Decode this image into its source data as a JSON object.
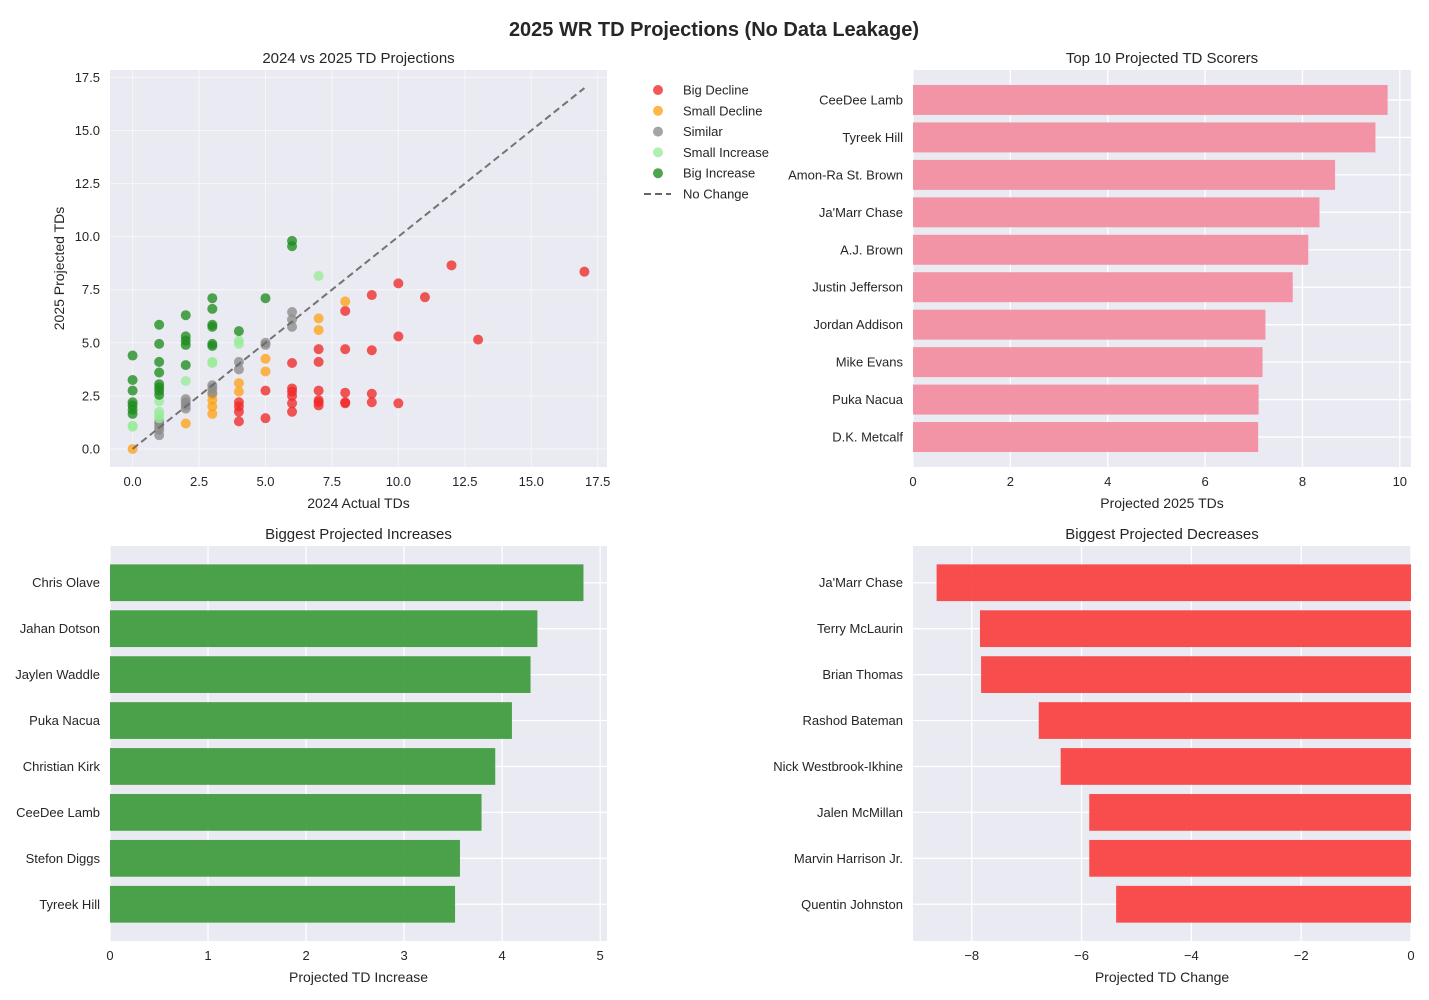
{
  "title": "2025 WR TD Projections (No Data Leakage)",
  "colors": {
    "panel_bg": "#eaeaf2",
    "grid": "#ffffff",
    "big_decline": "#ef2929",
    "small_decline": "#ffa31a",
    "similar": "#8c8c8c",
    "small_increase": "#98ec98",
    "big_increase": "#1e8c1e",
    "top10_bar": "#f28ba0",
    "increase_bar": "#3c9a3c",
    "decrease_bar": "#f93f3f",
    "no_change_line": "#666666"
  },
  "chart_data": [
    {
      "type": "scatter",
      "title": "2024 vs 2025 TD Projections",
      "xlabel": "2024 Actual TDs",
      "ylabel": "2025 Projected TDs",
      "xlim": [
        -0.85,
        17.85
      ],
      "ylim": [
        -0.85,
        17.85
      ],
      "xticks": [
        0,
        2.5,
        5,
        7.5,
        10,
        12.5,
        15,
        17.5
      ],
      "xtick_labels": [
        "0.0",
        "2.5",
        "5.0",
        "7.5",
        "10.0",
        "12.5",
        "15.0",
        "17.5"
      ],
      "yticks": [
        0,
        2.5,
        5,
        7.5,
        10,
        12.5,
        15,
        17.5
      ],
      "ytick_labels": [
        "0.0",
        "2.5",
        "5.0",
        "7.5",
        "10.0",
        "12.5",
        "15.0",
        "17.5"
      ],
      "grid": true,
      "legend_position": "outside-right",
      "reference_line": {
        "name": "No Change",
        "from": [
          0,
          0
        ],
        "to": [
          17,
          17
        ],
        "style": "dashed"
      },
      "series": [
        {
          "name": "Big Decline",
          "color_key": "big_decline",
          "points": [
            [
              4,
              1.3
            ],
            [
              4,
              1.75
            ],
            [
              4,
              2.0
            ],
            [
              4,
              2.2
            ],
            [
              5,
              1.45
            ],
            [
              5,
              2.75
            ],
            [
              6,
              1.75
            ],
            [
              6,
              2.15
            ],
            [
              6,
              2.5
            ],
            [
              6,
              2.7
            ],
            [
              6,
              2.85
            ],
            [
              6,
              4.05
            ],
            [
              7,
              2.05
            ],
            [
              7,
              2.2
            ],
            [
              7,
              2.3
            ],
            [
              7,
              2.75
            ],
            [
              7,
              4.1
            ],
            [
              7,
              4.7
            ],
            [
              8,
              2.15
            ],
            [
              8,
              2.2
            ],
            [
              8,
              2.65
            ],
            [
              8,
              4.7
            ],
            [
              8,
              6.5
            ],
            [
              9,
              2.2
            ],
            [
              9,
              2.6
            ],
            [
              9,
              4.65
            ],
            [
              9,
              7.25
            ],
            [
              10,
              2.15
            ],
            [
              10,
              5.3
            ],
            [
              10,
              7.8
            ],
            [
              11,
              7.15
            ],
            [
              12,
              8.65
            ],
            [
              13,
              5.15
            ],
            [
              17,
              8.35
            ]
          ]
        },
        {
          "name": "Small Decline",
          "color_key": "small_decline",
          "points": [
            [
              0,
              0.0
            ],
            [
              2,
              1.2
            ],
            [
              3,
              1.65
            ],
            [
              3,
              2.0
            ],
            [
              3,
              2.3
            ],
            [
              3,
              2.55
            ],
            [
              4,
              2.7
            ],
            [
              4,
              3.1
            ],
            [
              5,
              3.65
            ],
            [
              5,
              4.25
            ],
            [
              7,
              5.6
            ],
            [
              7,
              6.15
            ],
            [
              8,
              6.95
            ]
          ]
        },
        {
          "name": "Similar",
          "color_key": "similar",
          "points": [
            [
              1,
              0.65
            ],
            [
              1,
              0.9
            ],
            [
              1,
              1.05
            ],
            [
              1,
              1.2
            ],
            [
              1,
              1.3
            ],
            [
              2,
              1.9
            ],
            [
              2,
              2.05
            ],
            [
              2,
              2.2
            ],
            [
              2,
              2.35
            ],
            [
              3,
              2.65
            ],
            [
              3,
              2.85
            ],
            [
              3,
              3.0
            ],
            [
              4,
              3.75
            ],
            [
              4,
              4.1
            ],
            [
              5,
              4.9
            ],
            [
              5,
              5.0
            ],
            [
              6,
              5.75
            ],
            [
              6,
              6.1
            ],
            [
              6,
              6.45
            ]
          ]
        },
        {
          "name": "Small Increase",
          "color_key": "small_increase",
          "points": [
            [
              0,
              1.05
            ],
            [
              0,
              1.1
            ],
            [
              1,
              1.45
            ],
            [
              1,
              1.6
            ],
            [
              1,
              1.75
            ],
            [
              1,
              2.25
            ],
            [
              2,
              3.2
            ],
            [
              3,
              4.05
            ],
            [
              3,
              4.1
            ],
            [
              4,
              4.95
            ],
            [
              4,
              5.1
            ],
            [
              7,
              8.15
            ]
          ]
        },
        {
          "name": "Big Increase",
          "color_key": "big_increase",
          "points": [
            [
              0,
              1.65
            ],
            [
              0,
              1.85
            ],
            [
              0,
              2.05
            ],
            [
              0,
              2.2
            ],
            [
              0,
              2.75
            ],
            [
              0,
              3.25
            ],
            [
              0,
              4.4
            ],
            [
              1,
              2.55
            ],
            [
              1,
              2.75
            ],
            [
              1,
              2.9
            ],
            [
              1,
              3.05
            ],
            [
              1,
              3.6
            ],
            [
              1,
              4.1
            ],
            [
              1,
              4.95
            ],
            [
              1,
              5.85
            ],
            [
              2,
              3.95
            ],
            [
              2,
              4.9
            ],
            [
              2,
              5.1
            ],
            [
              2,
              5.3
            ],
            [
              2,
              6.3
            ],
            [
              3,
              4.85
            ],
            [
              3,
              4.95
            ],
            [
              3,
              5.75
            ],
            [
              3,
              5.85
            ],
            [
              3,
              6.6
            ],
            [
              3,
              7.1
            ],
            [
              4,
              5.55
            ],
            [
              5,
              7.1
            ],
            [
              6,
              9.55
            ],
            [
              6,
              9.8
            ]
          ]
        }
      ]
    },
    {
      "type": "bar",
      "orientation": "horizontal",
      "title": "Top 10 Projected TD Scorers",
      "xlabel": "Projected 2025 TDs",
      "ylabel": "",
      "xlim": [
        0,
        10.23
      ],
      "xticks": [
        0,
        2,
        4,
        6,
        8,
        10
      ],
      "xtick_labels": [
        "0",
        "2",
        "4",
        "6",
        "8",
        "10"
      ],
      "color_key": "top10_bar",
      "categories": [
        "CeeDee Lamb",
        "Tyreek Hill",
        "Amon-Ra St. Brown",
        "Ja'Marr Chase",
        "A.J. Brown",
        "Justin Jefferson",
        "Jordan Addison",
        "Mike Evans",
        "Puka Nacua",
        "D.K. Metcalf"
      ],
      "values": [
        9.75,
        9.5,
        8.67,
        8.35,
        8.12,
        7.8,
        7.24,
        7.18,
        7.1,
        7.09
      ]
    },
    {
      "type": "bar",
      "orientation": "horizontal",
      "title": "Biggest Projected Increases",
      "xlabel": "Projected TD Increase",
      "ylabel": "",
      "xlim": [
        0,
        5.07
      ],
      "xticks": [
        0,
        1,
        2,
        3,
        4,
        5
      ],
      "xtick_labels": [
        "0",
        "1",
        "2",
        "3",
        "4",
        "5"
      ],
      "color_key": "increase_bar",
      "categories": [
        "Chris Olave",
        "Jahan Dotson",
        "Jaylen Waddle",
        "Puka Nacua",
        "Christian Kirk",
        "CeeDee Lamb",
        "Stefon Diggs",
        "Tyreek Hill"
      ],
      "values": [
        4.83,
        4.36,
        4.29,
        4.1,
        3.93,
        3.79,
        3.57,
        3.52
      ]
    },
    {
      "type": "bar",
      "orientation": "horizontal",
      "title": "Biggest Projected Decreases",
      "xlabel": "Projected TD Change",
      "ylabel": "",
      "xlim": [
        -9.07,
        0
      ],
      "xticks": [
        -8,
        -6,
        -4,
        -2,
        0
      ],
      "xtick_labels": [
        "−8",
        "−6",
        "−4",
        "−2",
        "0"
      ],
      "color_key": "decrease_bar",
      "categories": [
        "Ja'Marr Chase",
        "Terry McLaurin",
        "Brian Thomas",
        "Rashod Bateman",
        "Nick Westbrook-Ikhine",
        "Jalen McMillan",
        "Marvin Harrison Jr.",
        "Quentin Johnston"
      ],
      "values": [
        -8.64,
        -7.85,
        -7.83,
        -6.78,
        -6.38,
        -5.86,
        -5.86,
        -5.37
      ]
    }
  ]
}
